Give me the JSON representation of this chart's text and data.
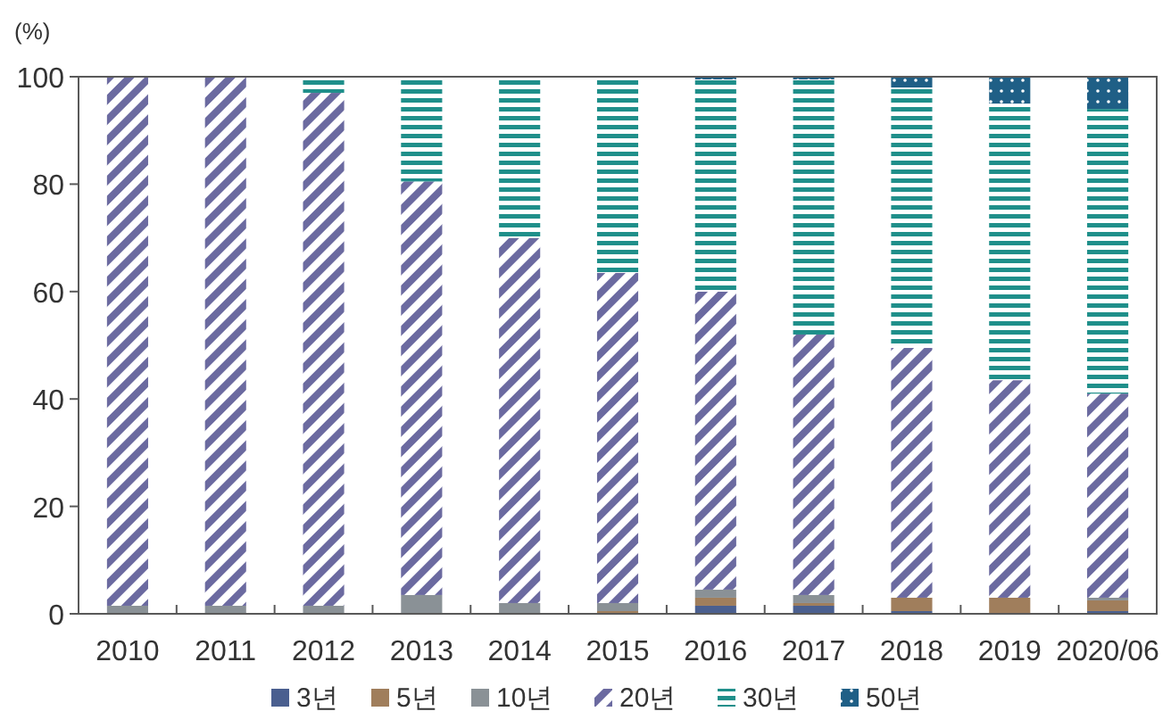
{
  "chart_data": {
    "type": "bar",
    "stacked": true,
    "ylabel": "(%)",
    "categories": [
      "2010",
      "2011",
      "2012",
      "2013",
      "2014",
      "2015",
      "2016",
      "2017",
      "2018",
      "2019",
      "2020/06"
    ],
    "series": [
      {
        "name": "3년",
        "color": "#4a5f8f",
        "values": [
          0,
          0,
          0,
          0,
          0,
          0,
          1.5,
          1.5,
          0.5,
          0,
          0.5
        ]
      },
      {
        "name": "5년",
        "color": "#a07e5c",
        "values": [
          0,
          0,
          0,
          0,
          0,
          0.5,
          1.5,
          0.5,
          2.5,
          3,
          2
        ]
      },
      {
        "name": "10년",
        "color": "#8a9196",
        "values": [
          1.5,
          1.5,
          1.5,
          3.5,
          2,
          1.5,
          1.5,
          1.5,
          0,
          0,
          0.5
        ]
      },
      {
        "name": "20년",
        "color": "#6b6aa0",
        "values": [
          98.5,
          98.5,
          95.5,
          77,
          68,
          61.5,
          55.5,
          48.5,
          46.5,
          40.5,
          38
        ]
      },
      {
        "name": "30년",
        "color": "#1f8f8a",
        "values": [
          0,
          0,
          3,
          19.5,
          30,
          36.5,
          39.5,
          47.5,
          48.5,
          51.5,
          53
        ]
      },
      {
        "name": "50년",
        "color": "#1f5f86",
        "values": [
          0,
          0,
          0,
          0,
          0,
          0,
          0.5,
          0.5,
          2,
          5,
          6
        ]
      }
    ],
    "ylim": [
      0,
      100
    ],
    "yticks": [
      0,
      20,
      40,
      60,
      80,
      100
    ],
    "legend": "bottom"
  }
}
